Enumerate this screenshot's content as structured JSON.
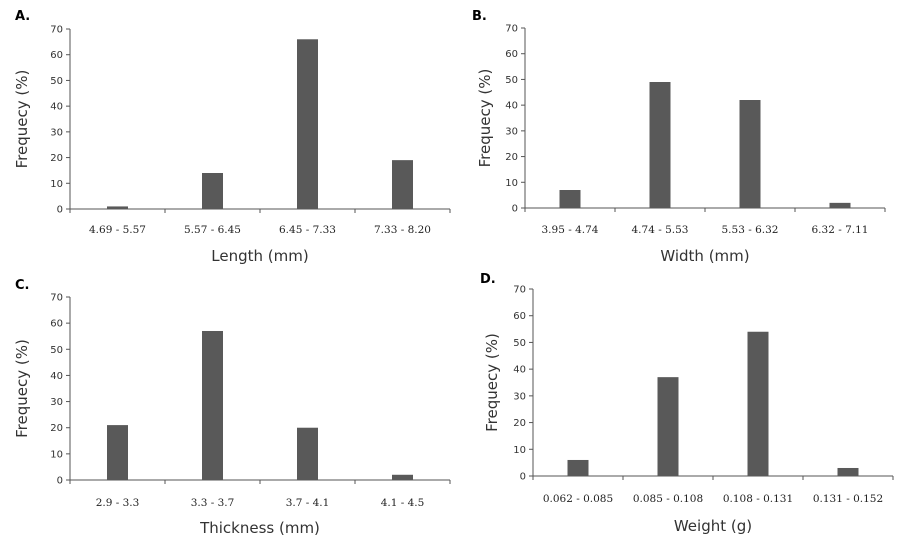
{
  "chart_data": [
    {
      "panel": "A.",
      "type": "bar",
      "categories": [
        "4.69 - 5.57",
        "5.57 - 6.45",
        "6.45 - 7.33",
        "7.33 - 8.20"
      ],
      "values": [
        1,
        14,
        66,
        19
      ],
      "xlabel": "Length (mm)",
      "ylabel": "Frequecy (%)",
      "ylim": [
        0,
        70
      ],
      "yticks": [
        0,
        10,
        20,
        30,
        40,
        50,
        60,
        70
      ],
      "grid": false
    },
    {
      "panel": "B.",
      "type": "bar",
      "categories": [
        "3.95 - 4.74",
        "4.74 - 5.53",
        "5.53 - 6.32",
        "6.32 - 7.11"
      ],
      "values": [
        7,
        49,
        42,
        2
      ],
      "xlabel": "Width (mm)",
      "ylabel": "Frequecy (%)",
      "ylim": [
        0,
        70
      ],
      "yticks": [
        0,
        10,
        20,
        30,
        40,
        50,
        60,
        70
      ],
      "grid": false
    },
    {
      "panel": "C.",
      "type": "bar",
      "categories": [
        "2.9 - 3.3",
        "3.3 - 3.7",
        "3.7 - 4.1",
        "4.1 - 4.5"
      ],
      "values": [
        21,
        57,
        20,
        2
      ],
      "xlabel": "Thickness (mm)",
      "ylabel": "Frequecy (%)",
      "ylim": [
        0,
        70
      ],
      "yticks": [
        0,
        10,
        20,
        30,
        40,
        50,
        60,
        70
      ],
      "grid": false
    },
    {
      "panel": "D.",
      "type": "bar",
      "categories": [
        "0.062 - 0.085",
        "0.085 - 0.108",
        "0.108 - 0.131",
        "0.131 - 0.152"
      ],
      "values": [
        6,
        37,
        54,
        3
      ],
      "xlabel": "Weight (g)",
      "ylabel": "Frequecy (%)",
      "ylim": [
        0,
        70
      ],
      "yticks": [
        0,
        10,
        20,
        30,
        40,
        50,
        60,
        70
      ],
      "grid": false
    }
  ],
  "colors": {
    "bar": "#595959",
    "axis": "#555555"
  }
}
